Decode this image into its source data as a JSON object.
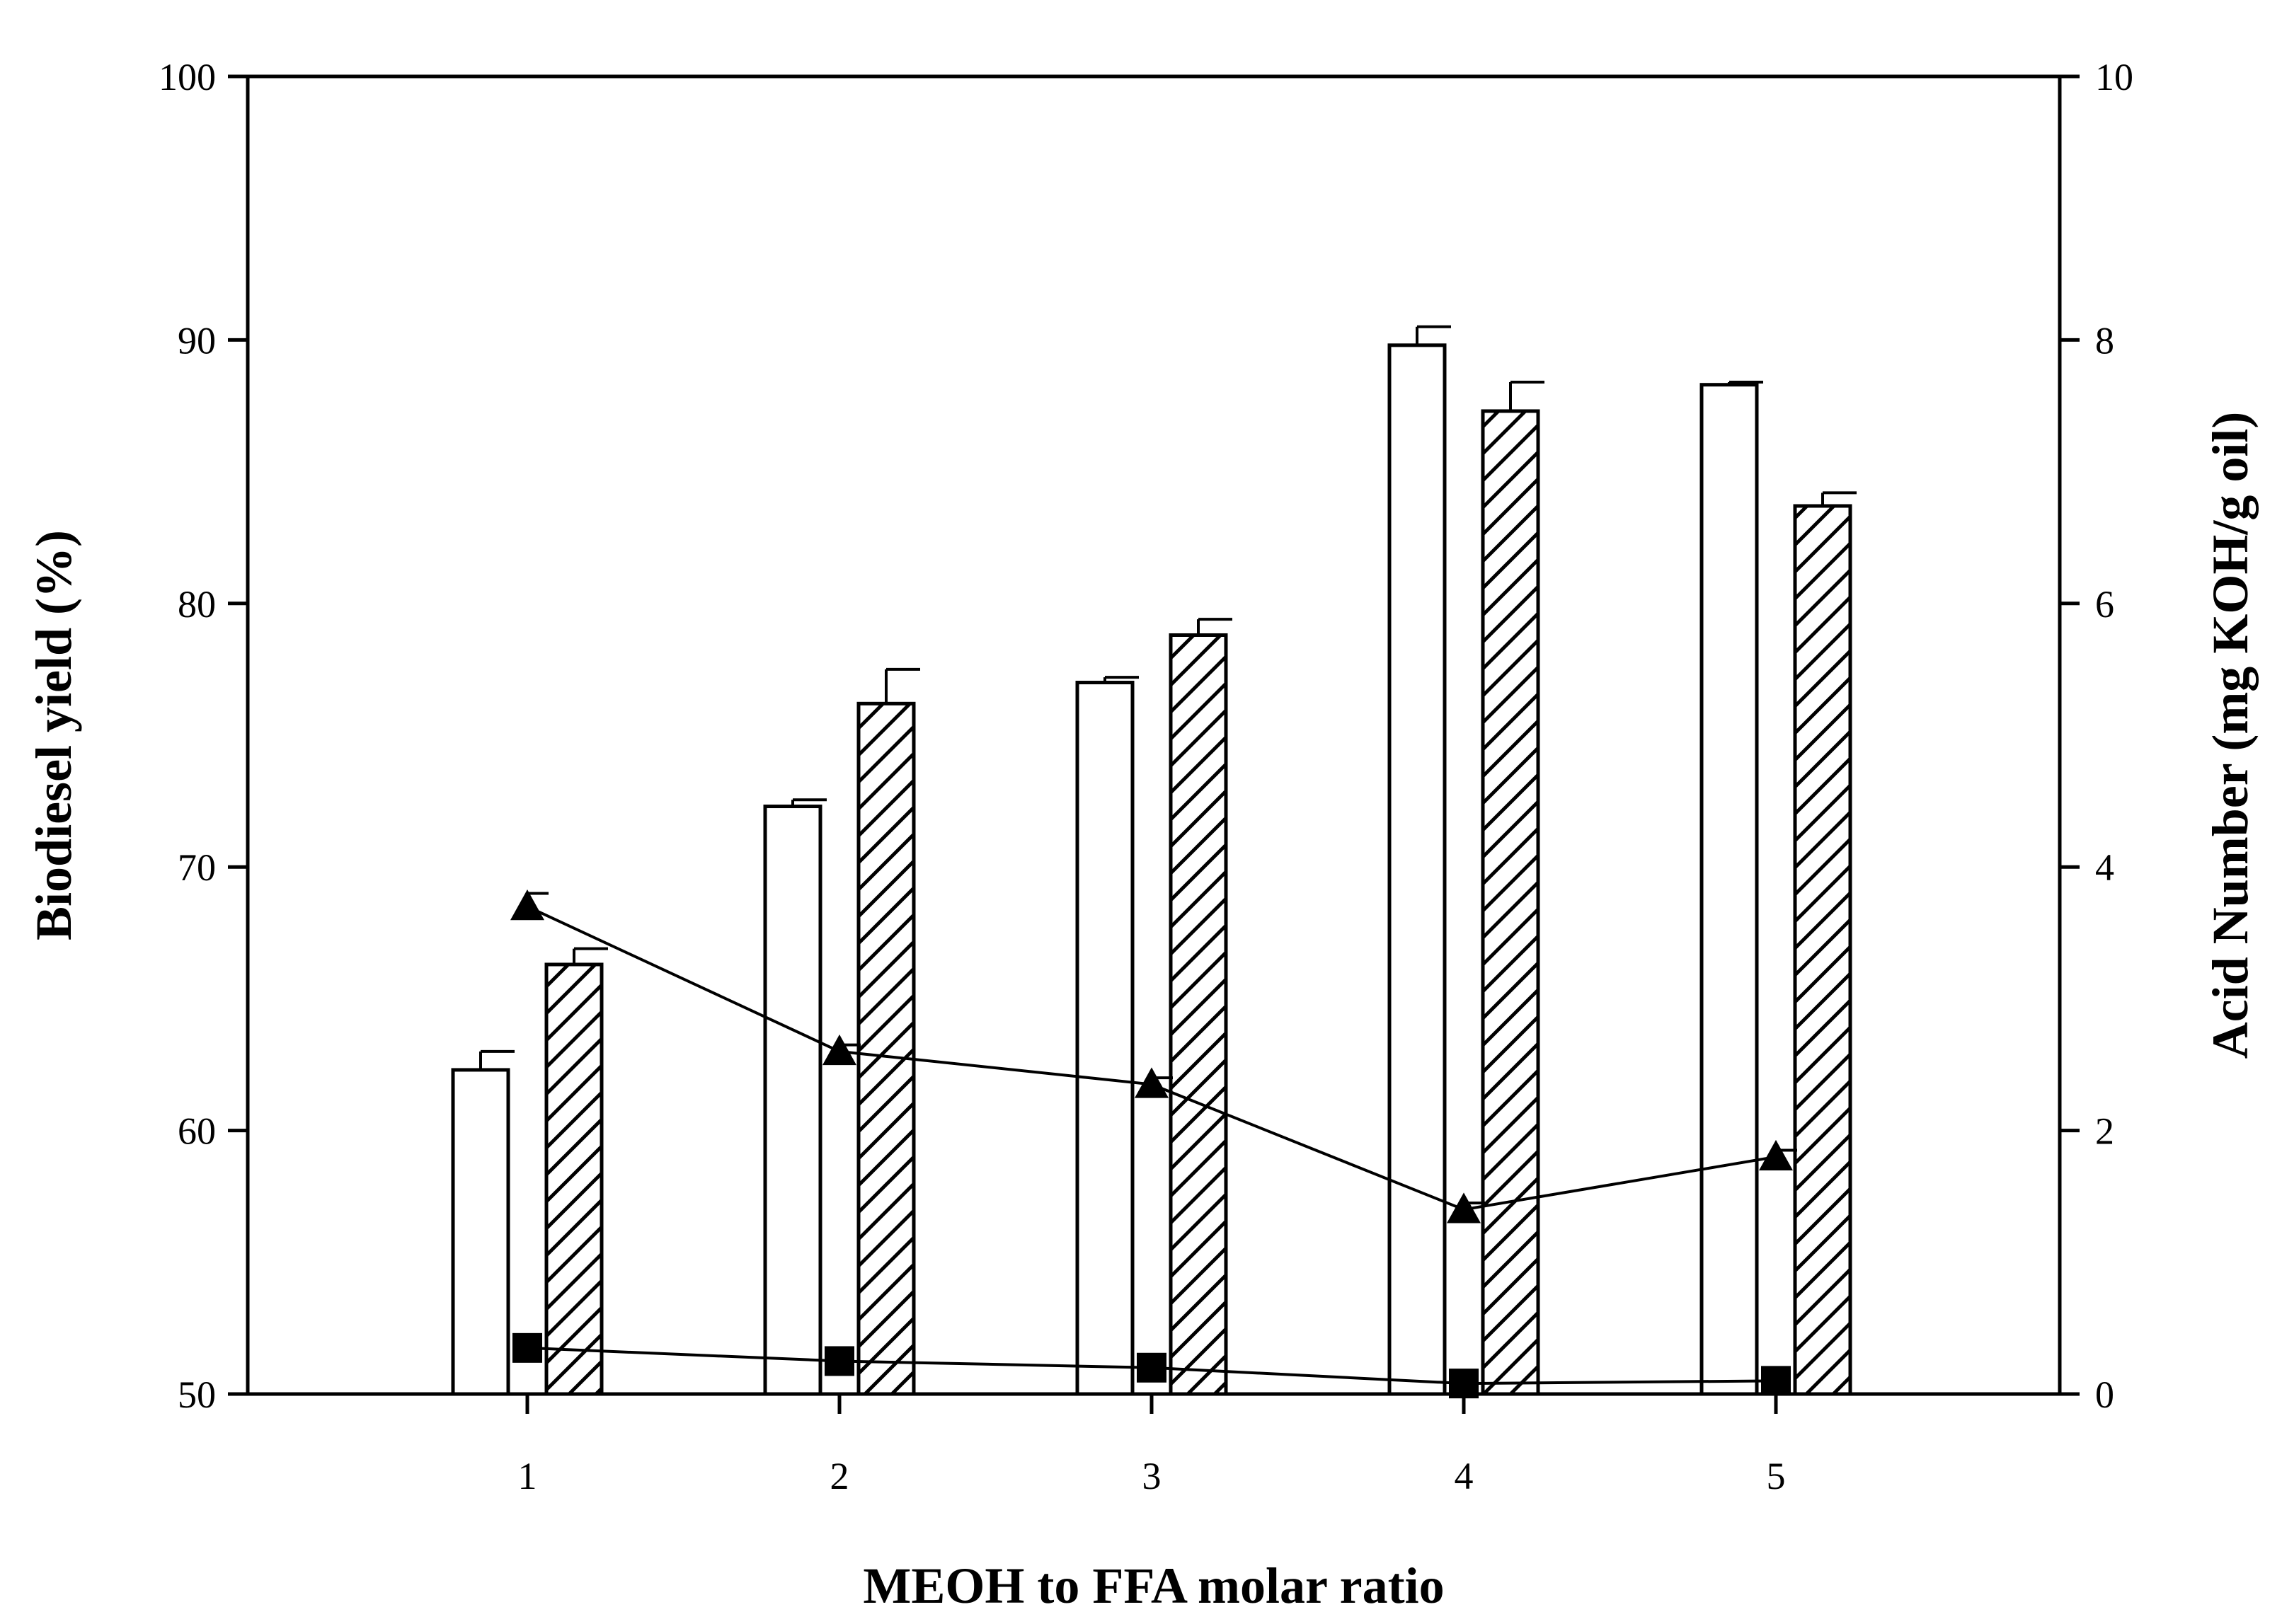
{
  "chart_data": {
    "type": "bar",
    "title": "",
    "xlabel": "MEOH to FFA molar ratio",
    "ylabel": "Biodiesel yield (%)",
    "y2label": "Acid Number (mg KOH/g oil)",
    "categories": [
      "1",
      "2",
      "3",
      "4",
      "5"
    ],
    "ylim": [
      50,
      100
    ],
    "yticks": [
      50,
      60,
      70,
      80,
      90,
      100
    ],
    "y2lim": [
      0,
      10
    ],
    "y2ticks": [
      0,
      2,
      4,
      6,
      8,
      10
    ],
    "grid": false,
    "bar_series": [
      {
        "name": "Biodiesel yield (open bars)",
        "fill": "#ffffff",
        "pattern": "none",
        "values": [
          62.3,
          72.3,
          77.0,
          89.8,
          88.3
        ],
        "errors": [
          0.7,
          0.25,
          0.2,
          0.7,
          0.1
        ]
      },
      {
        "name": "Biodiesel yield (hatched bars)",
        "fill": "#ffffff",
        "pattern": "diagonal-hatch",
        "values": [
          66.3,
          76.2,
          78.8,
          87.3,
          83.7
        ],
        "errors": [
          0.6,
          1.3,
          0.6,
          1.1,
          0.5
        ]
      }
    ],
    "line_series": [
      {
        "name": "Acid number (triangles)",
        "marker": "triangle",
        "axis": "right",
        "values": [
          3.7,
          2.6,
          2.35,
          1.4,
          1.8
        ],
        "errors": [
          0.1,
          0.05,
          0.05,
          0.05,
          0.05
        ]
      },
      {
        "name": "Acid number (squares)",
        "marker": "square",
        "axis": "right",
        "values": [
          0.35,
          0.25,
          0.2,
          0.08,
          0.1
        ],
        "errors": [
          0,
          0,
          0,
          0,
          0
        ]
      }
    ],
    "colors": {
      "axis": "#000000",
      "marker": "#000000",
      "bar_fill": "#ffffff"
    }
  }
}
